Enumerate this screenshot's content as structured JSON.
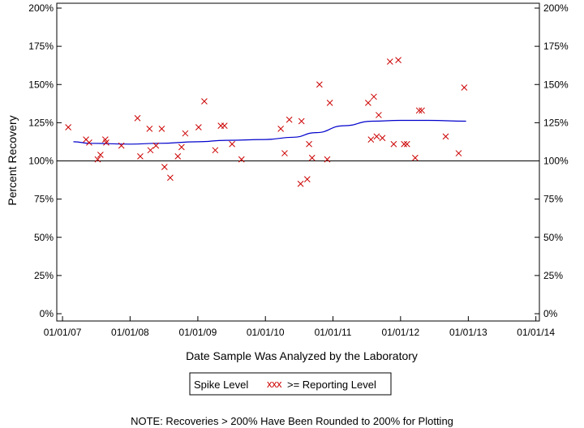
{
  "chart_data": {
    "type": "scatter",
    "title": "",
    "xlabel": "Date Sample Was Analyzed by the Laboratory",
    "ylabel": "Percent Recovery",
    "ylim": [
      0,
      200
    ],
    "xlim": [
      "2006-12-01",
      "2014-01-20"
    ],
    "y_ticks": [
      "0%",
      "25%",
      "50%",
      "75%",
      "100%",
      "125%",
      "150%",
      "175%",
      "200%"
    ],
    "y_tick_values": [
      0,
      25,
      50,
      75,
      100,
      125,
      150,
      175,
      200
    ],
    "x_ticks": [
      "01/01/07",
      "01/01/08",
      "01/01/09",
      "01/01/10",
      "01/01/11",
      "01/01/12",
      "01/01/13",
      "01/01/14"
    ],
    "x_tick_dates": [
      "2007-01-01",
      "2008-01-01",
      "2009-01-01",
      "2010-01-01",
      "2011-01-01",
      "2012-01-01",
      "2013-01-01",
      "2014-01-01"
    ],
    "reference_line": 100,
    "grid": false,
    "legend_position": "bottom-center",
    "legend": {
      "spike_level_label": "Spike Level",
      "reporting_marker": "xxx",
      "reporting_label": ">= Reporting Level"
    },
    "note": "NOTE: Recoveries > 200% Have Been Rounded to 200% for Plotting",
    "colors": {
      "points": "#cc0000",
      "trend": "#0000cc",
      "axes": "#000000"
    },
    "series": [
      {
        "name": ">= Reporting Level",
        "kind": "points",
        "x": [
          "2007-02-01",
          "2007-05-08",
          "2007-05-25",
          "2007-07-10",
          "2007-07-25",
          "2007-08-20",
          "2007-08-25",
          "2007-11-15",
          "2008-02-10",
          "2008-02-25",
          "2008-04-15",
          "2008-04-20",
          "2008-05-20",
          "2008-06-20",
          "2008-07-05",
          "2008-08-05",
          "2008-09-15",
          "2008-10-05",
          "2008-10-25",
          "2009-01-05",
          "2009-02-05",
          "2009-04-05",
          "2009-05-05",
          "2009-05-25",
          "2009-07-05",
          "2009-08-25",
          "2010-03-25",
          "2010-04-15",
          "2010-05-10",
          "2010-07-10",
          "2010-07-15",
          "2010-08-15",
          "2010-08-25",
          "2010-09-10",
          "2010-10-20",
          "2010-12-01",
          "2010-12-15",
          "2011-07-10",
          "2011-07-25",
          "2011-08-10",
          "2011-08-25",
          "2011-09-05",
          "2011-09-25",
          "2011-11-05",
          "2011-11-25",
          "2011-12-20",
          "2012-01-20",
          "2012-02-05",
          "2012-03-20",
          "2012-04-10",
          "2012-04-25",
          "2012-09-01",
          "2012-11-10",
          "2012-12-10"
        ],
        "y": [
          122,
          114,
          112,
          101,
          104,
          114,
          112,
          110,
          128,
          103,
          121,
          107,
          110,
          121,
          96,
          89,
          103,
          109,
          118,
          122,
          139,
          107,
          123,
          123,
          111,
          101,
          121,
          105,
          127,
          85,
          126,
          88,
          111,
          102,
          150,
          101,
          138,
          138,
          114,
          142,
          116,
          130,
          115,
          165,
          111,
          166,
          111,
          111,
          102,
          133,
          133,
          116,
          105,
          148
        ]
      },
      {
        "name": "Spike Level",
        "kind": "line",
        "x": [
          "2007-03-01",
          "2007-06-01",
          "2008-01-01",
          "2008-06-01",
          "2009-01-01",
          "2009-06-01",
          "2010-01-01",
          "2010-06-01",
          "2010-10-01",
          "2011-03-01",
          "2011-08-01",
          "2012-01-01",
          "2012-06-01",
          "2012-12-20"
        ],
        "y": [
          112.5,
          111.5,
          111,
          111.5,
          112.5,
          113.5,
          114,
          115.5,
          118.5,
          123,
          126,
          126.5,
          126.5,
          126
        ]
      }
    ]
  }
}
